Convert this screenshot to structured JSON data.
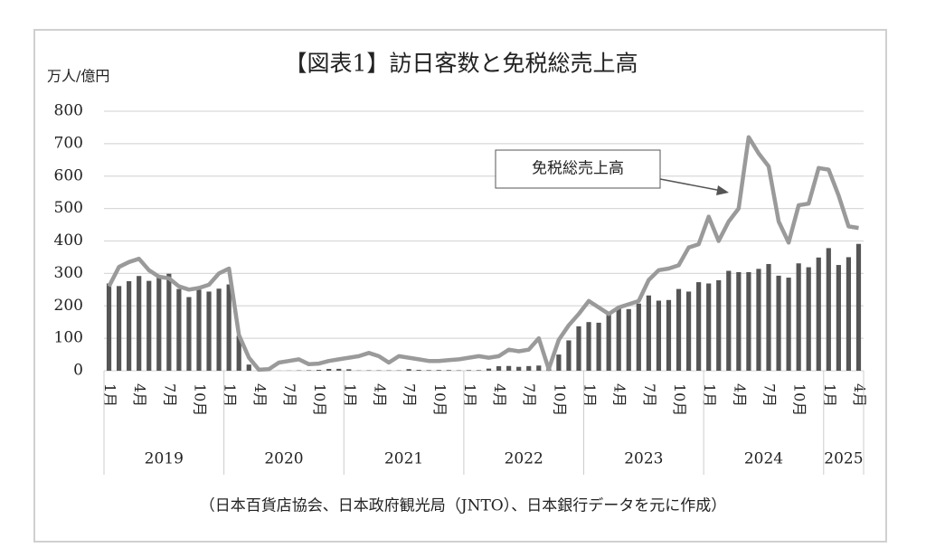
{
  "chart_data": {
    "type": "bar_line",
    "title": "【図表1】訪日客数と免税総売上高",
    "y_label": "万人/億円",
    "note": "（日本百貨店協会、日本政府観光局（JNTO）、日本銀行データを元に作成）",
    "categories": [
      "1月",
      null,
      null,
      "4月",
      null,
      null,
      "7月",
      null,
      null,
      "10月",
      null,
      null,
      "1月",
      null,
      null,
      "4月",
      null,
      null,
      "7月",
      null,
      null,
      "10月",
      null,
      null,
      "1月",
      null,
      null,
      "4月",
      null,
      null,
      "7月",
      null,
      null,
      "10月",
      null,
      null,
      "1月",
      null,
      null,
      "4月",
      null,
      null,
      "7月",
      null,
      null,
      "10月",
      null,
      null,
      "1月",
      null,
      null,
      "4月",
      null,
      null,
      "7月",
      null,
      null,
      "10月",
      null,
      null,
      "1月",
      null,
      null,
      "4月",
      null,
      null,
      "7月",
      null,
      null,
      "10月",
      null,
      null,
      "1月",
      null,
      null,
      "4月"
    ],
    "groups": [
      {
        "label": "2019",
        "count": 12
      },
      {
        "label": "2020",
        "count": 12
      },
      {
        "label": "2021",
        "count": 12
      },
      {
        "label": "2022",
        "count": 12
      },
      {
        "label": "2023",
        "count": 12
      },
      {
        "label": "2024",
        "count": 12
      },
      {
        "label": "2025",
        "count": 4
      }
    ],
    "series": [
      {
        "kind": "bar",
        "color": "#555555",
        "values": [
          269,
          261,
          276,
          292,
          277,
          288,
          299,
          252,
          227,
          250,
          244,
          253,
          266,
          108,
          19,
          0.3,
          0.2,
          0.3,
          0.4,
          0.9,
          1.4,
          2.8,
          5.6,
          5.9,
          4.6,
          0.7,
          1.2,
          1.1,
          1,
          1,
          5,
          2.6,
          1.8,
          2.2,
          2.1,
          1.2,
          1.7,
          1.7,
          6.6,
          13.9,
          14.7,
          12,
          14.4,
          16,
          20.7,
          49.9,
          93.5,
          137,
          150,
          148,
          182,
          195,
          190,
          207,
          232,
          216,
          218,
          252,
          244,
          273,
          269,
          279,
          308,
          304,
          304,
          314,
          329,
          293,
          287,
          331,
          319,
          349,
          378,
          326,
          350,
          391
        ]
      },
      {
        "kind": "line",
        "name": "免税総売上高",
        "color": "#9a9a9a",
        "values": [
          260,
          320,
          335,
          345,
          310,
          290,
          285,
          260,
          250,
          255,
          265,
          300,
          315,
          110,
          40,
          3,
          5,
          25,
          30,
          35,
          20,
          22,
          30,
          35,
          40,
          45,
          55,
          45,
          25,
          45,
          40,
          35,
          30,
          30,
          33,
          35,
          40,
          45,
          40,
          45,
          65,
          60,
          65,
          100,
          5,
          95,
          140,
          175,
          215,
          195,
          175,
          195,
          205,
          215,
          280,
          310,
          315,
          325,
          380,
          390,
          475,
          400,
          460,
          500,
          720,
          670,
          630,
          460,
          395,
          510,
          515,
          625,
          620,
          540,
          445,
          440
        ]
      }
    ],
    "ylim": [
      0,
      800
    ],
    "yticks": [
      0,
      100,
      200,
      300,
      400,
      500,
      600,
      700,
      800
    ],
    "grid": true
  }
}
